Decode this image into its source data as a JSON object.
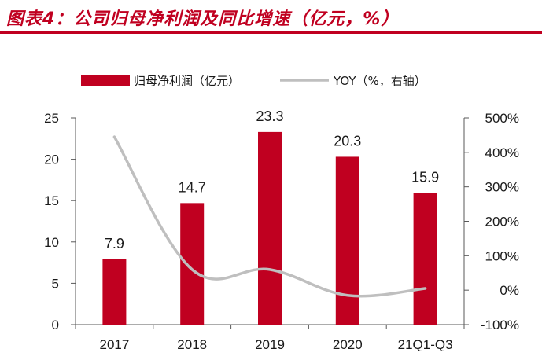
{
  "title": "图表4：公司归母净利润及同比增速（亿元，%）",
  "chart_data": {
    "type": "bar",
    "categories": [
      "2017",
      "2018",
      "2019",
      "2020",
      "21Q1-Q3"
    ],
    "series": [
      {
        "name": "归母净利润（亿元）",
        "type": "bar",
        "axis": "left",
        "color": "#C00020",
        "values": [
          7.9,
          14.7,
          23.3,
          20.3,
          15.9
        ]
      },
      {
        "name": "YOY（%，右轴）",
        "type": "line",
        "axis": "right",
        "color": "#BFBFBF",
        "values": [
          445,
          60,
          60,
          -15,
          5
        ]
      }
    ],
    "data_labels": [
      "7.9",
      "14.7",
      "23.3",
      "20.3",
      "15.9"
    ],
    "y_left": {
      "range": [
        0,
        25
      ],
      "ticks": [
        "0",
        "5",
        "10",
        "15",
        "20",
        "25"
      ]
    },
    "y_right": {
      "range": [
        -100,
        500
      ],
      "ticks": [
        "-100%",
        "0%",
        "100%",
        "200%",
        "300%",
        "400%",
        "500%"
      ]
    },
    "legend_position": "top-left",
    "grid": false
  }
}
